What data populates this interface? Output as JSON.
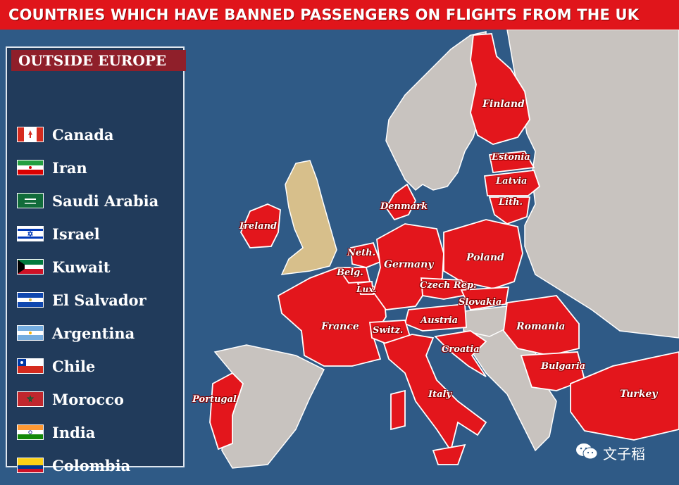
{
  "title": "COUNTRIES WHICH HAVE BANNED PASSENGERS ON FLIGHTS FROM THE UK",
  "legend": {
    "header": "OUTSIDE EUROPE",
    "items": [
      {
        "label": "Canada",
        "flag": "canada-flag"
      },
      {
        "label": "Iran",
        "flag": "iran-flag"
      },
      {
        "label": "Saudi Arabia",
        "flag": "saudi-arabia-flag"
      },
      {
        "label": "Israel",
        "flag": "israel-flag"
      },
      {
        "label": "Kuwait",
        "flag": "kuwait-flag"
      },
      {
        "label": "El Salvador",
        "flag": "el-salvador-flag"
      },
      {
        "label": "Argentina",
        "flag": "argentina-flag"
      },
      {
        "label": "Chile",
        "flag": "chile-flag"
      },
      {
        "label": "Morocco",
        "flag": "morocco-flag"
      },
      {
        "label": "India",
        "flag": "india-flag"
      },
      {
        "label": "Colombia",
        "flag": "colombia-flag"
      }
    ]
  },
  "map": {
    "banned_countries": [
      "Finland",
      "Estonia",
      "Latvia",
      "Lith.",
      "Denmark",
      "Ireland",
      "Neth.",
      "Belg.",
      "Lux.",
      "Germany",
      "Poland",
      "Czech Rep.",
      "Slovakia",
      "France",
      "Switz.",
      "Austria",
      "Romania",
      "Croatia",
      "Bulgaria",
      "Portugal",
      "Italy",
      "Turkey"
    ],
    "colors": {
      "sea": "#2f5a86",
      "banned": "#e3161c",
      "other_land": "#c8c3bf",
      "uk": "#d7bf8b",
      "border": "#ffffff"
    }
  },
  "watermark": {
    "text": "文子稻",
    "icon": "wechat-icon"
  }
}
